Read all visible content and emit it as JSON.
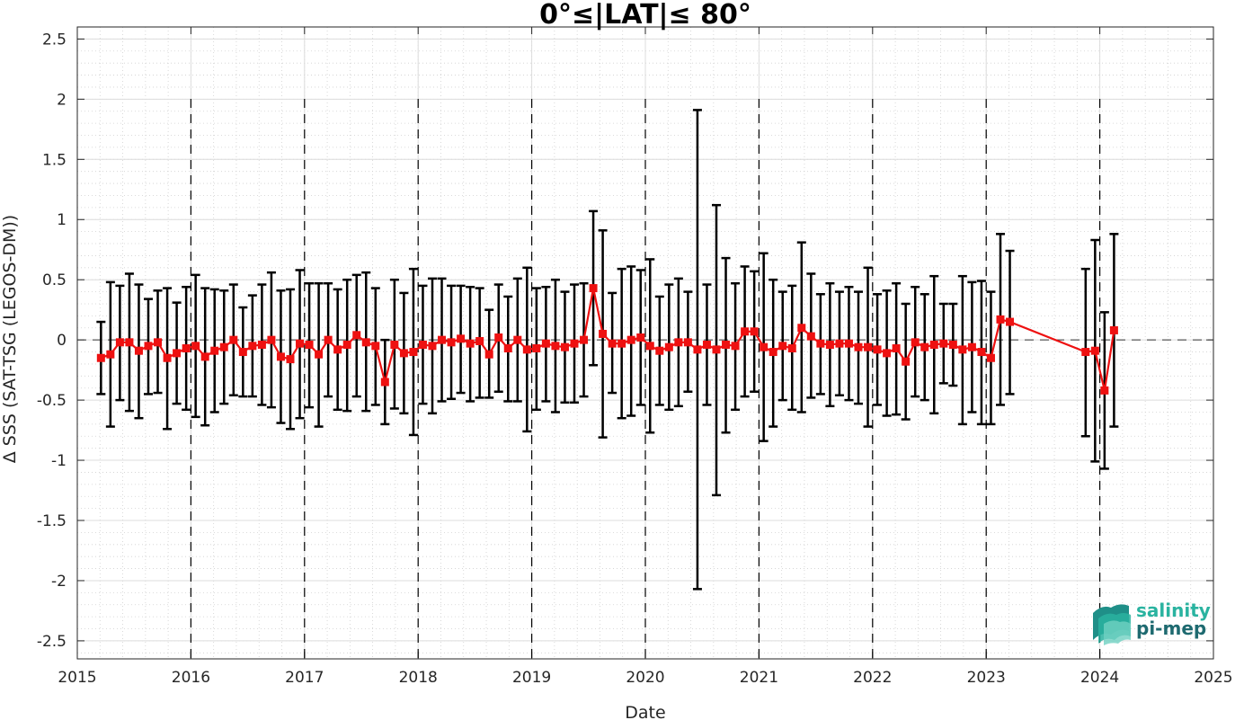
{
  "chart_data": {
    "type": "line",
    "title": "0°≤|LAT|≤ 80°",
    "xlabel": "Date",
    "ylabel": "Δ SSS (SAT-TSG (LEGOS-DM))",
    "xlim": [
      2015,
      2025
    ],
    "ylim": [
      -2.65,
      2.6
    ],
    "x_ticks": [
      "2015",
      "2016",
      "2017",
      "2018",
      "2019",
      "2020",
      "2021",
      "2022",
      "2023",
      "2024",
      "2025"
    ],
    "y_ticks": [
      "2.5",
      "2",
      "1.5",
      "1",
      "0.5",
      "0",
      "-0.5",
      "-1",
      "-1.5",
      "-2",
      "-2.5"
    ],
    "grid": "major and minor, dotted",
    "year_separators": "dashed vertical lines at each year",
    "zero_line": "dashed horizontal line at 0",
    "series": [
      {
        "color": "#ee1111",
        "marker": "square",
        "errorbar_color": "#000000",
        "points": [
          {
            "x": "2015-03",
            "y": -0.15,
            "lo": -0.45,
            "hi": 0.15
          },
          {
            "x": "2015-04",
            "y": -0.12,
            "lo": -0.72,
            "hi": 0.48
          },
          {
            "x": "2015-05",
            "y": -0.02,
            "lo": -0.5,
            "hi": 0.45
          },
          {
            "x": "2015-06",
            "y": -0.02,
            "lo": -0.59,
            "hi": 0.55
          },
          {
            "x": "2015-07",
            "y": -0.09,
            "lo": -0.65,
            "hi": 0.46
          },
          {
            "x": "2015-08",
            "y": -0.05,
            "lo": -0.45,
            "hi": 0.34
          },
          {
            "x": "2015-09",
            "y": -0.02,
            "lo": -0.44,
            "hi": 0.41
          },
          {
            "x": "2015-10",
            "y": -0.15,
            "lo": -0.74,
            "hi": 0.43
          },
          {
            "x": "2015-11",
            "y": -0.11,
            "lo": -0.53,
            "hi": 0.31
          },
          {
            "x": "2015-12",
            "y": -0.07,
            "lo": -0.58,
            "hi": 0.44
          },
          {
            "x": "2016-01",
            "y": -0.05,
            "lo": -0.64,
            "hi": 0.54
          },
          {
            "x": "2016-02",
            "y": -0.14,
            "lo": -0.71,
            "hi": 0.43
          },
          {
            "x": "2016-03",
            "y": -0.09,
            "lo": -0.6,
            "hi": 0.42
          },
          {
            "x": "2016-04",
            "y": -0.06,
            "lo": -0.53,
            "hi": 0.41
          },
          {
            "x": "2016-05",
            "y": 0.0,
            "lo": -0.46,
            "hi": 0.46
          },
          {
            "x": "2016-06",
            "y": -0.1,
            "lo": -0.47,
            "hi": 0.27
          },
          {
            "x": "2016-07",
            "y": -0.05,
            "lo": -0.47,
            "hi": 0.37
          },
          {
            "x": "2016-08",
            "y": -0.04,
            "lo": -0.54,
            "hi": 0.46
          },
          {
            "x": "2016-09",
            "y": 0.0,
            "lo": -0.56,
            "hi": 0.56
          },
          {
            "x": "2016-10",
            "y": -0.14,
            "lo": -0.69,
            "hi": 0.41
          },
          {
            "x": "2016-11",
            "y": -0.16,
            "lo": -0.74,
            "hi": 0.42
          },
          {
            "x": "2016-12",
            "y": -0.03,
            "lo": -0.65,
            "hi": 0.58
          },
          {
            "x": "2017-01",
            "y": -0.04,
            "lo": -0.56,
            "hi": 0.47
          },
          {
            "x": "2017-02",
            "y": -0.12,
            "lo": -0.72,
            "hi": 0.47
          },
          {
            "x": "2017-03",
            "y": 0.0,
            "lo": -0.47,
            "hi": 0.47
          },
          {
            "x": "2017-04",
            "y": -0.08,
            "lo": -0.58,
            "hi": 0.42
          },
          {
            "x": "2017-05",
            "y": -0.04,
            "lo": -0.59,
            "hi": 0.5
          },
          {
            "x": "2017-06",
            "y": 0.04,
            "lo": -0.47,
            "hi": 0.54
          },
          {
            "x": "2017-07",
            "y": -0.02,
            "lo": -0.59,
            "hi": 0.56
          },
          {
            "x": "2017-08",
            "y": -0.05,
            "lo": -0.54,
            "hi": 0.43
          },
          {
            "x": "2017-09",
            "y": -0.35,
            "lo": -0.7,
            "hi": 0.0
          },
          {
            "x": "2017-10",
            "y": -0.04,
            "lo": -0.57,
            "hi": 0.5
          },
          {
            "x": "2017-11",
            "y": -0.11,
            "lo": -0.61,
            "hi": 0.39
          },
          {
            "x": "2017-12",
            "y": -0.1,
            "lo": -0.79,
            "hi": 0.59
          },
          {
            "x": "2018-01",
            "y": -0.04,
            "lo": -0.53,
            "hi": 0.45
          },
          {
            "x": "2018-02",
            "y": -0.05,
            "lo": -0.61,
            "hi": 0.51
          },
          {
            "x": "2018-03",
            "y": 0.0,
            "lo": -0.51,
            "hi": 0.51
          },
          {
            "x": "2018-04",
            "y": -0.02,
            "lo": -0.49,
            "hi": 0.45
          },
          {
            "x": "2018-05",
            "y": 0.01,
            "lo": -0.44,
            "hi": 0.45
          },
          {
            "x": "2018-06",
            "y": -0.03,
            "lo": -0.51,
            "hi": 0.44
          },
          {
            "x": "2018-07",
            "y": -0.01,
            "lo": -0.48,
            "hi": 0.43
          },
          {
            "x": "2018-08",
            "y": -0.12,
            "lo": -0.48,
            "hi": 0.25
          },
          {
            "x": "2018-09",
            "y": 0.02,
            "lo": -0.43,
            "hi": 0.46
          },
          {
            "x": "2018-10",
            "y": -0.07,
            "lo": -0.51,
            "hi": 0.36
          },
          {
            "x": "2018-11",
            "y": 0.0,
            "lo": -0.51,
            "hi": 0.51
          },
          {
            "x": "2018-12",
            "y": -0.08,
            "lo": -0.76,
            "hi": 0.6
          },
          {
            "x": "2019-01",
            "y": -0.07,
            "lo": -0.58,
            "hi": 0.43
          },
          {
            "x": "2019-02",
            "y": -0.03,
            "lo": -0.51,
            "hi": 0.44
          },
          {
            "x": "2019-03",
            "y": -0.05,
            "lo": -0.6,
            "hi": 0.5
          },
          {
            "x": "2019-04",
            "y": -0.06,
            "lo": -0.52,
            "hi": 0.4
          },
          {
            "x": "2019-05",
            "y": -0.03,
            "lo": -0.52,
            "hi": 0.46
          },
          {
            "x": "2019-06",
            "y": 0.0,
            "lo": -0.47,
            "hi": 0.47
          },
          {
            "x": "2019-07",
            "y": 0.43,
            "lo": -0.21,
            "hi": 1.07
          },
          {
            "x": "2019-08",
            "y": 0.05,
            "lo": -0.81,
            "hi": 0.91
          },
          {
            "x": "2019-09",
            "y": -0.03,
            "lo": -0.44,
            "hi": 0.39
          },
          {
            "x": "2019-10",
            "y": -0.03,
            "lo": -0.65,
            "hi": 0.59
          },
          {
            "x": "2019-11",
            "y": 0.0,
            "lo": -0.63,
            "hi": 0.61
          },
          {
            "x": "2019-12",
            "y": 0.02,
            "lo": -0.54,
            "hi": 0.58
          },
          {
            "x": "2020-01",
            "y": -0.05,
            "lo": -0.77,
            "hi": 0.67
          },
          {
            "x": "2020-02",
            "y": -0.09,
            "lo": -0.54,
            "hi": 0.36
          },
          {
            "x": "2020-03",
            "y": -0.06,
            "lo": -0.58,
            "hi": 0.46
          },
          {
            "x": "2020-04",
            "y": -0.02,
            "lo": -0.55,
            "hi": 0.51
          },
          {
            "x": "2020-05",
            "y": -0.02,
            "lo": -0.43,
            "hi": 0.4
          },
          {
            "x": "2020-06",
            "y": -0.08,
            "lo": -2.07,
            "hi": 1.91
          },
          {
            "x": "2020-07",
            "y": -0.04,
            "lo": -0.54,
            "hi": 0.46
          },
          {
            "x": "2020-08",
            "y": -0.08,
            "lo": -1.29,
            "hi": 1.12
          },
          {
            "x": "2020-09",
            "y": -0.04,
            "lo": -0.77,
            "hi": 0.68
          },
          {
            "x": "2020-10",
            "y": -0.05,
            "lo": -0.58,
            "hi": 0.47
          },
          {
            "x": "2020-11",
            "y": 0.07,
            "lo": -0.47,
            "hi": 0.61
          },
          {
            "x": "2020-12",
            "y": 0.07,
            "lo": -0.43,
            "hi": 0.57
          },
          {
            "x": "2021-01",
            "y": -0.06,
            "lo": -0.84,
            "hi": 0.72
          },
          {
            "x": "2021-02",
            "y": -0.1,
            "lo": -0.72,
            "hi": 0.5
          },
          {
            "x": "2021-03",
            "y": -0.05,
            "lo": -0.5,
            "hi": 0.4
          },
          {
            "x": "2021-04",
            "y": -0.07,
            "lo": -0.58,
            "hi": 0.45
          },
          {
            "x": "2021-05",
            "y": 0.1,
            "lo": -0.6,
            "hi": 0.81
          },
          {
            "x": "2021-06",
            "y": 0.03,
            "lo": -0.48,
            "hi": 0.55
          },
          {
            "x": "2021-07",
            "y": -0.03,
            "lo": -0.45,
            "hi": 0.38
          },
          {
            "x": "2021-08",
            "y": -0.04,
            "lo": -0.55,
            "hi": 0.47
          },
          {
            "x": "2021-09",
            "y": -0.03,
            "lo": -0.46,
            "hi": 0.4
          },
          {
            "x": "2021-10",
            "y": -0.03,
            "lo": -0.5,
            "hi": 0.44
          },
          {
            "x": "2021-11",
            "y": -0.06,
            "lo": -0.53,
            "hi": 0.4
          },
          {
            "x": "2021-12",
            "y": -0.06,
            "lo": -0.72,
            "hi": 0.6
          },
          {
            "x": "2022-01",
            "y": -0.08,
            "lo": -0.54,
            "hi": 0.38
          },
          {
            "x": "2022-02",
            "y": -0.11,
            "lo": -0.63,
            "hi": 0.41
          },
          {
            "x": "2022-03",
            "y": -0.07,
            "lo": -0.62,
            "hi": 0.47
          },
          {
            "x": "2022-04",
            "y": -0.18,
            "lo": -0.66,
            "hi": 0.3
          },
          {
            "x": "2022-05",
            "y": -0.02,
            "lo": -0.47,
            "hi": 0.44
          },
          {
            "x": "2022-06",
            "y": -0.06,
            "lo": -0.5,
            "hi": 0.38
          },
          {
            "x": "2022-07",
            "y": -0.04,
            "lo": -0.61,
            "hi": 0.53
          },
          {
            "x": "2022-08",
            "y": -0.03,
            "lo": -0.36,
            "hi": 0.3
          },
          {
            "x": "2022-09",
            "y": -0.04,
            "lo": -0.38,
            "hi": 0.3
          },
          {
            "x": "2022-10",
            "y": -0.08,
            "lo": -0.7,
            "hi": 0.53
          },
          {
            "x": "2022-11",
            "y": -0.06,
            "lo": -0.6,
            "hi": 0.48
          },
          {
            "x": "2022-12",
            "y": -0.1,
            "lo": -0.7,
            "hi": 0.49
          },
          {
            "x": "2023-01",
            "y": -0.15,
            "lo": -0.7,
            "hi": 0.4
          },
          {
            "x": "2023-02",
            "y": 0.17,
            "lo": -0.54,
            "hi": 0.88
          },
          {
            "x": "2023-03",
            "y": 0.15,
            "lo": -0.45,
            "hi": 0.74
          },
          {
            "x": "2023-11",
            "y": -0.1,
            "lo": -0.8,
            "hi": 0.59
          },
          {
            "x": "2023-12",
            "y": -0.09,
            "lo": -1.01,
            "hi": 0.83
          },
          {
            "x": "2024-01",
            "y": -0.42,
            "lo": -1.07,
            "hi": 0.23
          },
          {
            "x": "2024-02",
            "y": 0.08,
            "lo": -0.72,
            "hi": 0.88
          }
        ]
      }
    ]
  },
  "logo": {
    "line1": "salinity",
    "line2": "pi-mep",
    "color1": "#2ab3a0",
    "color2": "#1e6a70"
  }
}
